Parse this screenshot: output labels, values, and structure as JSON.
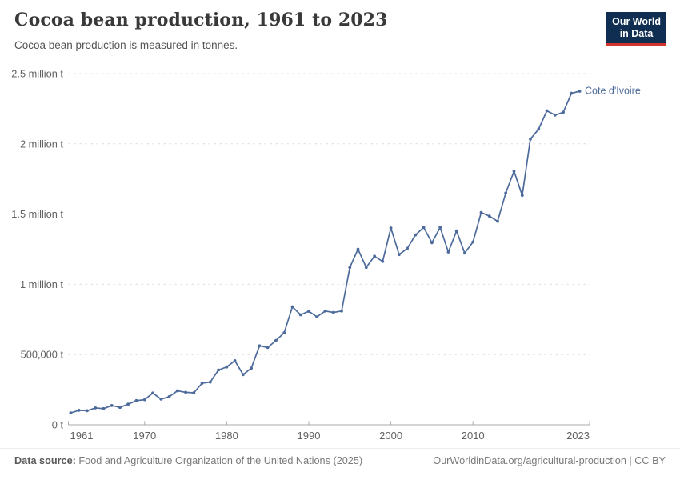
{
  "header": {
    "title": "Cocoa bean production, 1961 to 2023",
    "subtitle": "Cocoa bean production is measured in tonnes.",
    "logo_line1": "Our World",
    "logo_line2": "in Data"
  },
  "colors": {
    "line": "#4C6A9C",
    "logo_bg": "#0f2e52",
    "logo_accent": "#d0342c",
    "gridline": "#dcdcdc",
    "axis": "#a9a9a9",
    "axis_text": "#616161"
  },
  "chart_data": {
    "type": "line",
    "title": "Cocoa bean production, 1961 to 2023",
    "ylabel": "",
    "xlabel": "",
    "unit": "tonnes",
    "grid": "horizontal-dashed",
    "legend_position": "end-of-line",
    "xlim": [
      1961,
      2023
    ],
    "ylim": [
      0,
      2500000
    ],
    "x_ticks": [
      1961,
      1970,
      1980,
      1990,
      2000,
      2010,
      2023
    ],
    "y_ticks": [
      {
        "value": 0,
        "label": "0 t"
      },
      {
        "value": 500000,
        "label": "500,000 t"
      },
      {
        "value": 1000000,
        "label": "1 million t"
      },
      {
        "value": 1500000,
        "label": "1.5 million t"
      },
      {
        "value": 2000000,
        "label": "2 million t"
      },
      {
        "value": 2500000,
        "label": "2.5 million t"
      }
    ],
    "series": [
      {
        "name": "Cote d'Ivoire",
        "color": "#4C6A9C",
        "x": [
          1961,
          1962,
          1963,
          1964,
          1965,
          1966,
          1967,
          1968,
          1969,
          1970,
          1971,
          1972,
          1973,
          1974,
          1975,
          1976,
          1977,
          1978,
          1979,
          1980,
          1981,
          1982,
          1983,
          1984,
          1985,
          1986,
          1987,
          1988,
          1989,
          1990,
          1991,
          1992,
          1993,
          1994,
          1995,
          1996,
          1997,
          1998,
          1999,
          2000,
          2001,
          2002,
          2003,
          2004,
          2005,
          2006,
          2007,
          2008,
          2009,
          2010,
          2011,
          2012,
          2013,
          2014,
          2015,
          2016,
          2017,
          2018,
          2019,
          2020,
          2021,
          2022,
          2023
        ],
        "values": [
          85000,
          103000,
          100000,
          120000,
          115000,
          137000,
          124000,
          147000,
          172000,
          179000,
          226000,
          183000,
          200000,
          242000,
          231000,
          228000,
          296000,
          304000,
          390000,
          412000,
          456000,
          357000,
          403000,
          562000,
          550000,
          600000,
          655000,
          840000,
          783000,
          808000,
          768000,
          810000,
          800000,
          810000,
          1120000,
          1250000,
          1120000,
          1200000,
          1163000,
          1401000,
          1212000,
          1255000,
          1352000,
          1405000,
          1296000,
          1405000,
          1230000,
          1380000,
          1222000,
          1301000,
          1511000,
          1486000,
          1449000,
          1650000,
          1805000,
          1633000,
          2034000,
          2105000,
          2235000,
          2205000,
          2225000,
          2360000,
          2375000
        ]
      }
    ]
  },
  "footer": {
    "source_label": "Data source:",
    "source_text": "Food and Agriculture Organization of the United Nations (2025)",
    "credit": "OurWorldinData.org/agricultural-production | CC BY"
  }
}
